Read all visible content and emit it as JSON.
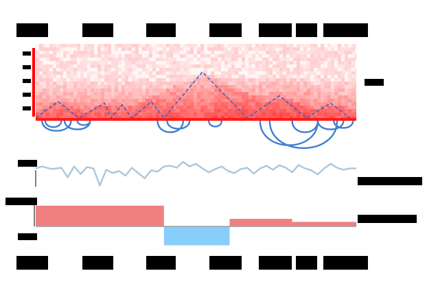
{
  "chart_data": [
    {
      "type": "heatmap",
      "panel": "contact-map",
      "title": "",
      "xlabel": "",
      "ylabel": "",
      "colormap": [
        "#ffffff",
        "#ff0000"
      ],
      "x_range": [
        0,
        1
      ],
      "tad_peaks": [
        0.07,
        0.215,
        0.27,
        0.36,
        0.52,
        0.76,
        0.92
      ],
      "tad_peak_heights": [
        0.22,
        0.2,
        0.18,
        0.22,
        0.62,
        0.3,
        0.2
      ],
      "tad_valleys": [
        0.0,
        0.135,
        0.235,
        0.3,
        0.4,
        0.66,
        0.845,
        0.98
      ],
      "loops": [
        {
          "start": 0.02,
          "end": 0.11,
          "depth": 0.35
        },
        {
          "start": 0.03,
          "end": 0.08,
          "depth": 0.22
        },
        {
          "start": 0.09,
          "end": 0.17,
          "depth": 0.3
        },
        {
          "start": 0.13,
          "end": 0.17,
          "depth": 0.15
        },
        {
          "start": 0.38,
          "end": 0.46,
          "depth": 0.4
        },
        {
          "start": 0.41,
          "end": 0.48,
          "depth": 0.28
        },
        {
          "start": 0.54,
          "end": 0.58,
          "depth": 0.2
        },
        {
          "start": 0.7,
          "end": 0.88,
          "depth": 0.85
        },
        {
          "start": 0.73,
          "end": 0.94,
          "depth": 0.95
        },
        {
          "start": 0.8,
          "end": 0.88,
          "depth": 0.4
        },
        {
          "start": 0.88,
          "end": 0.96,
          "depth": 0.3
        },
        {
          "start": 0.93,
          "end": 0.99,
          "depth": 0.25
        }
      ],
      "grid": false,
      "legend": "none"
    },
    {
      "type": "line",
      "panel": "signal-track",
      "title": "",
      "x": [
        0.0,
        0.02,
        0.05,
        0.08,
        0.1,
        0.12,
        0.14,
        0.16,
        0.18,
        0.2,
        0.22,
        0.24,
        0.26,
        0.28,
        0.3,
        0.32,
        0.34,
        0.36,
        0.38,
        0.4,
        0.42,
        0.44,
        0.46,
        0.48,
        0.5,
        0.52,
        0.54,
        0.56,
        0.58,
        0.6,
        0.62,
        0.64,
        0.66,
        0.68,
        0.7,
        0.72,
        0.74,
        0.76,
        0.78,
        0.8,
        0.82,
        0.84,
        0.86,
        0.88,
        0.9,
        0.92,
        0.94,
        0.96,
        0.98,
        1.0
      ],
      "series": [
        {
          "values": [
            0.72,
            0.78,
            0.7,
            0.74,
            0.45,
            0.78,
            0.55,
            0.76,
            0.72,
            0.2,
            0.68,
            0.58,
            0.64,
            0.5,
            0.74,
            0.58,
            0.42,
            0.66,
            0.62,
            0.78,
            0.8,
            0.74,
            0.92,
            0.78,
            0.86,
            0.72,
            0.6,
            0.7,
            0.78,
            0.64,
            0.58,
            0.7,
            0.74,
            0.56,
            0.72,
            0.8,
            0.68,
            0.82,
            0.74,
            0.6,
            0.82,
            0.72,
            0.66,
            0.54,
            0.72,
            0.86,
            0.74,
            0.68,
            0.72,
            0.72
          ],
          "color": "#a9c7dc"
        }
      ],
      "ylim": [
        0,
        1
      ],
      "grid": false,
      "legend": "none"
    },
    {
      "type": "bar",
      "panel": "segment-track",
      "title": "",
      "segments": [
        {
          "start": 0.0,
          "end": 0.4,
          "value": 0.55,
          "color": "#f08080"
        },
        {
          "start": 0.4,
          "end": 0.605,
          "value": -0.5,
          "color": "#87cefa"
        },
        {
          "start": 0.605,
          "end": 0.8,
          "value": 0.2,
          "color": "#f08080"
        },
        {
          "start": 0.8,
          "end": 1.0,
          "value": 0.12,
          "color": "#f08080"
        }
      ],
      "ylim": [
        -1,
        1
      ],
      "grid": false,
      "legend": "none"
    }
  ]
}
